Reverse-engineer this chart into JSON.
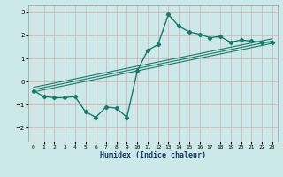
{
  "xlabel": "Humidex (Indice chaleur)",
  "ylabel": "",
  "bg_color": "#cce8e8",
  "grid_color": "#d4b8b8",
  "line_color": "#1a7a6a",
  "xlim": [
    -0.5,
    23.5
  ],
  "ylim": [
    -2.6,
    3.3
  ],
  "xticks": [
    0,
    1,
    2,
    3,
    4,
    5,
    6,
    7,
    8,
    9,
    10,
    11,
    12,
    13,
    14,
    15,
    16,
    17,
    18,
    19,
    20,
    21,
    22,
    23
  ],
  "yticks": [
    -2,
    -1,
    0,
    1,
    2,
    3
  ],
  "main_x": [
    0,
    1,
    2,
    3,
    4,
    5,
    6,
    7,
    8,
    9,
    10,
    11,
    12,
    13,
    14,
    15,
    16,
    17,
    18,
    19,
    20,
    21,
    22,
    23
  ],
  "main_y": [
    -0.4,
    -0.65,
    -0.7,
    -0.7,
    -0.65,
    -1.3,
    -1.55,
    -1.1,
    -1.15,
    -1.55,
    0.45,
    1.35,
    1.6,
    2.9,
    2.4,
    2.15,
    2.05,
    1.9,
    1.95,
    1.7,
    1.8,
    1.75,
    1.7,
    1.7
  ],
  "trend_lines": [
    {
      "x": [
        0,
        23
      ],
      "y": [
        -0.45,
        1.65
      ]
    },
    {
      "x": [
        0,
        23
      ],
      "y": [
        -0.35,
        1.75
      ]
    },
    {
      "x": [
        0,
        23
      ],
      "y": [
        -0.25,
        1.85
      ]
    }
  ]
}
